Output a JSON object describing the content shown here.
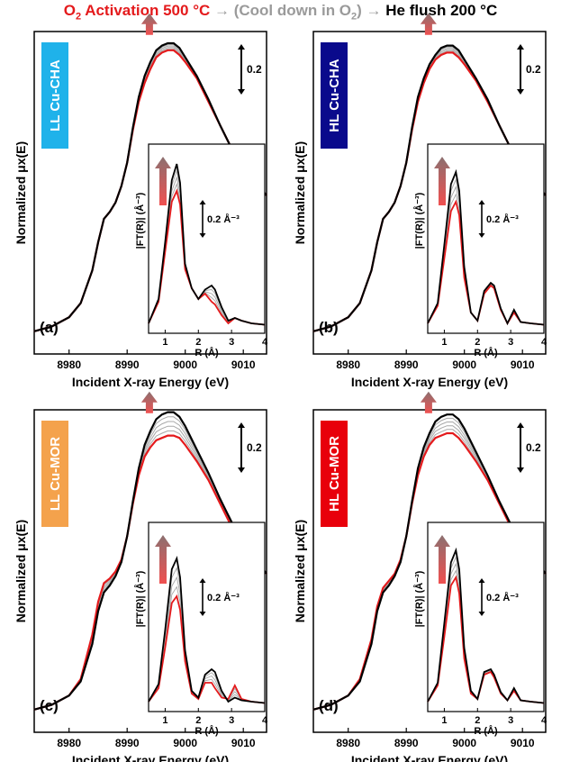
{
  "title": {
    "part1": "O",
    "part1_sub": "2",
    "part1_rest": " Activation 500 °C",
    "arrow1": " → ",
    "part2": "(Cool down in O",
    "part2_sub": "2",
    "part2_rest": ")",
    "arrow2": " → ",
    "part3": "He flush 200 °C"
  },
  "colors": {
    "activation": "#e41a1c",
    "cooling": "#a8a8a8",
    "flush": "#000000",
    "arrow_top": "#8c7070",
    "arrow_bottom": "#f05050"
  },
  "chart_data": [
    {
      "type": "line",
      "panel_label": "(a)",
      "sample_label": "LL Cu-CHA",
      "sample_color": "#1fb2ea",
      "xlabel": "Incident X-ray Energy (eV)",
      "ylabel": "Normalized μx(E)",
      "xlim": [
        8974,
        9014
      ],
      "xticks": [
        "8980",
        "8990",
        "9000",
        "9010"
      ],
      "scale_bar": "0.2",
      "main_series": [
        {
          "name": "O2 Activation 500 °C",
          "x": [
            8974,
            8977,
            8980,
            8982,
            8984,
            8985,
            8986,
            8987,
            8988,
            8989,
            8990,
            8991,
            8992,
            8993,
            8994,
            8995,
            8996,
            8997,
            8998,
            8999,
            9000,
            9002,
            9004,
            9006,
            9008,
            9010,
            9014
          ],
          "y": [
            0.02,
            0.04,
            0.08,
            0.14,
            0.28,
            0.4,
            0.5,
            0.53,
            0.57,
            0.64,
            0.74,
            0.88,
            1.0,
            1.08,
            1.14,
            1.19,
            1.21,
            1.22,
            1.22,
            1.2,
            1.17,
            1.1,
            1.0,
            0.9,
            0.8,
            0.72,
            0.6
          ]
        },
        {
          "name": "He flush 200 °C",
          "x": [
            8974,
            8977,
            8980,
            8982,
            8984,
            8985,
            8986,
            8987,
            8988,
            8989,
            8990,
            8991,
            8992,
            8993,
            8994,
            8995,
            8996,
            8997,
            8998,
            8999,
            9000,
            9002,
            9004,
            9006,
            9008,
            9010,
            9014
          ],
          "y": [
            0.02,
            0.04,
            0.08,
            0.14,
            0.28,
            0.4,
            0.5,
            0.53,
            0.57,
            0.64,
            0.74,
            0.89,
            1.02,
            1.11,
            1.17,
            1.22,
            1.24,
            1.25,
            1.25,
            1.23,
            1.19,
            1.11,
            1.01,
            0.9,
            0.8,
            0.72,
            0.6
          ]
        }
      ],
      "inset": {
        "xlabel": "R (Å)",
        "ylabel": "|FT(R)| (Å⁻³)",
        "xlim": [
          0.5,
          4
        ],
        "xticks": [
          "1",
          "2",
          "3",
          "4"
        ],
        "scale_bar": "0.2 Å⁻³",
        "series": [
          {
            "name": "O2 Activation 500 °C",
            "x": [
              0.5,
              0.8,
              1.0,
              1.2,
              1.35,
              1.45,
              1.6,
              1.8,
              2.0,
              2.2,
              2.4,
              2.5,
              2.7,
              2.9,
              3.1,
              3.3,
              3.6,
              4.0
            ],
            "y": [
              0.02,
              0.18,
              0.55,
              0.92,
              1.0,
              0.9,
              0.42,
              0.28,
              0.2,
              0.24,
              0.18,
              0.16,
              0.08,
              0.02,
              0.06,
              0.04,
              0.02,
              0.01
            ]
          },
          {
            "name": "He flush 200 °C",
            "x": [
              0.5,
              0.8,
              1.0,
              1.2,
              1.35,
              1.45,
              1.6,
              1.8,
              2.0,
              2.2,
              2.4,
              2.5,
              2.7,
              2.9,
              3.1,
              3.3,
              3.6,
              4.0
            ],
            "y": [
              0.02,
              0.2,
              0.62,
              1.08,
              1.2,
              1.06,
              0.46,
              0.28,
              0.2,
              0.27,
              0.3,
              0.27,
              0.14,
              0.04,
              0.06,
              0.04,
              0.02,
              0.01
            ]
          }
        ]
      }
    },
    {
      "type": "line",
      "panel_label": "(b)",
      "sample_label": "HL Cu-CHA",
      "sample_color": "#0a0a8c",
      "xlabel": "Incident X-ray Energy (eV)",
      "ylabel": "Normalized μx(E)",
      "xlim": [
        8974,
        9014
      ],
      "xticks": [
        "8980",
        "8990",
        "9000",
        "9010"
      ],
      "scale_bar": "0.2",
      "main_series": [
        {
          "name": "O2 Activation 500 °C",
          "x": [
            8974,
            8977,
            8980,
            8982,
            8984,
            8985,
            8986,
            8987,
            8988,
            8989,
            8990,
            8991,
            8992,
            8993,
            8994,
            8995,
            8996,
            8997,
            8998,
            8999,
            9000,
            9002,
            9004,
            9006,
            9008,
            9010,
            9014
          ],
          "y": [
            0.02,
            0.04,
            0.08,
            0.14,
            0.28,
            0.4,
            0.5,
            0.53,
            0.57,
            0.64,
            0.74,
            0.88,
            1.0,
            1.08,
            1.14,
            1.18,
            1.2,
            1.21,
            1.21,
            1.19,
            1.16,
            1.09,
            1.0,
            0.9,
            0.8,
            0.72,
            0.6
          ]
        },
        {
          "name": "He flush 200 °C",
          "x": [
            8974,
            8977,
            8980,
            8982,
            8984,
            8985,
            8986,
            8987,
            8988,
            8989,
            8990,
            8991,
            8992,
            8993,
            8994,
            8995,
            8996,
            8997,
            8998,
            8999,
            9000,
            9002,
            9004,
            9006,
            9008,
            9010,
            9014
          ],
          "y": [
            0.02,
            0.04,
            0.08,
            0.14,
            0.28,
            0.4,
            0.5,
            0.53,
            0.57,
            0.64,
            0.74,
            0.89,
            1.02,
            1.1,
            1.16,
            1.2,
            1.23,
            1.24,
            1.24,
            1.22,
            1.18,
            1.1,
            1.01,
            0.9,
            0.8,
            0.72,
            0.6
          ]
        }
      ],
      "inset": {
        "xlabel": "R (Å)",
        "ylabel": "|FT(R)| (Å⁻³)",
        "xlim": [
          0.5,
          4
        ],
        "xticks": [
          "1",
          "2",
          "3",
          "4"
        ],
        "scale_bar": "0.2 Å⁻³",
        "series": [
          {
            "name": "O2 Activation 500 °C",
            "x": [
              0.5,
              0.8,
              1.0,
              1.2,
              1.35,
              1.45,
              1.6,
              1.8,
              2.0,
              2.2,
              2.4,
              2.5,
              2.7,
              2.9,
              3.1,
              3.3,
              3.6,
              4.0
            ],
            "y": [
              0.02,
              0.15,
              0.5,
              0.85,
              0.92,
              0.82,
              0.36,
              0.1,
              0.04,
              0.24,
              0.3,
              0.28,
              0.12,
              0.02,
              0.1,
              0.03,
              0.02,
              0.01
            ]
          },
          {
            "name": "He flush 200 °C",
            "x": [
              0.5,
              0.8,
              1.0,
              1.2,
              1.35,
              1.45,
              1.6,
              1.8,
              2.0,
              2.2,
              2.4,
              2.5,
              2.7,
              2.9,
              3.1,
              3.3,
              3.6,
              4.0
            ],
            "y": [
              0.02,
              0.17,
              0.6,
              1.05,
              1.14,
              1.0,
              0.44,
              0.1,
              0.04,
              0.26,
              0.32,
              0.3,
              0.13,
              0.02,
              0.12,
              0.03,
              0.02,
              0.01
            ]
          }
        ]
      }
    },
    {
      "type": "line",
      "panel_label": "(c)",
      "sample_label": "LL Cu-MOR",
      "sample_color": "#f4a24c",
      "xlabel": "Incident X-ray Energy (eV)",
      "ylabel": "Normalized μx(E)",
      "xlim": [
        8974,
        9014
      ],
      "xticks": [
        "8980",
        "8990",
        "9000",
        "9010"
      ],
      "scale_bar": "0.2",
      "main_series": [
        {
          "name": "O2 Activation 500 °C",
          "x": [
            8974,
            8977,
            8980,
            8982,
            8984,
            8985,
            8986,
            8987,
            8988,
            8989,
            8990,
            8991,
            8992,
            8993,
            8994,
            8995,
            8996,
            8997,
            8998,
            8999,
            9000,
            9002,
            9004,
            9006,
            9008,
            9010,
            9014
          ],
          "y": [
            0.02,
            0.04,
            0.08,
            0.15,
            0.34,
            0.48,
            0.56,
            0.58,
            0.61,
            0.66,
            0.76,
            0.9,
            1.02,
            1.1,
            1.14,
            1.17,
            1.18,
            1.19,
            1.19,
            1.18,
            1.15,
            1.08,
            1.0,
            0.9,
            0.8,
            0.72,
            0.6
          ]
        },
        {
          "name": "He flush 200 °C",
          "x": [
            8974,
            8977,
            8980,
            8982,
            8984,
            8985,
            8986,
            8987,
            8988,
            8989,
            8990,
            8991,
            8992,
            8993,
            8994,
            8995,
            8996,
            8997,
            8998,
            8999,
            9000,
            9002,
            9004,
            9006,
            9008,
            9010,
            9014
          ],
          "y": [
            0.02,
            0.04,
            0.08,
            0.14,
            0.3,
            0.44,
            0.52,
            0.55,
            0.59,
            0.65,
            0.76,
            0.91,
            1.05,
            1.15,
            1.21,
            1.26,
            1.28,
            1.29,
            1.29,
            1.27,
            1.23,
            1.13,
            1.03,
            0.92,
            0.82,
            0.73,
            0.6
          ]
        }
      ],
      "inset": {
        "xlabel": "R (Å)",
        "ylabel": "|FT(R)| (Å⁻³)",
        "xlim": [
          0.5,
          4
        ],
        "xticks": [
          "1",
          "2",
          "3",
          "4"
        ],
        "scale_bar": "0.2 Å⁻³",
        "series": [
          {
            "name": "O2 Activation 500 °C",
            "x": [
              0.5,
              0.8,
              1.0,
              1.2,
              1.35,
              1.45,
              1.6,
              1.8,
              2.0,
              2.2,
              2.4,
              2.5,
              2.7,
              2.9,
              3.1,
              3.3,
              3.6,
              4.0
            ],
            "y": [
              0.02,
              0.12,
              0.42,
              0.75,
              0.8,
              0.7,
              0.32,
              0.08,
              0.04,
              0.16,
              0.16,
              0.12,
              0.05,
              0.04,
              0.14,
              0.04,
              0.02,
              0.01
            ]
          },
          {
            "name": "He flush 200 °C",
            "x": [
              0.5,
              0.8,
              1.0,
              1.2,
              1.35,
              1.45,
              1.6,
              1.8,
              2.0,
              2.2,
              2.4,
              2.5,
              2.7,
              2.9,
              3.1,
              3.3,
              3.6,
              4.0
            ],
            "y": [
              0.02,
              0.15,
              0.55,
              1.0,
              1.08,
              0.94,
              0.4,
              0.1,
              0.05,
              0.22,
              0.26,
              0.24,
              0.1,
              0.02,
              0.05,
              0.03,
              0.02,
              0.01
            ]
          }
        ]
      }
    },
    {
      "type": "line",
      "panel_label": "(d)",
      "sample_label": "HL Cu-MOR",
      "sample_color": "#e8000b",
      "xlabel": "Incident X-ray Energy (eV)",
      "ylabel": "Normalized μx(E)",
      "xlim": [
        8974,
        9014
      ],
      "xticks": [
        "8980",
        "8990",
        "9000",
        "9010"
      ],
      "scale_bar": "0.2",
      "main_series": [
        {
          "name": "O2 Activation 500 °C",
          "x": [
            8974,
            8977,
            8980,
            8982,
            8984,
            8985,
            8986,
            8987,
            8988,
            8989,
            8990,
            8991,
            8992,
            8993,
            8994,
            8995,
            8996,
            8997,
            8998,
            8999,
            9000,
            9002,
            9004,
            9006,
            9008,
            9010,
            9014
          ],
          "y": [
            0.02,
            0.04,
            0.08,
            0.15,
            0.32,
            0.46,
            0.54,
            0.57,
            0.6,
            0.66,
            0.76,
            0.9,
            1.02,
            1.1,
            1.15,
            1.18,
            1.19,
            1.2,
            1.2,
            1.18,
            1.15,
            1.08,
            1.0,
            0.9,
            0.8,
            0.72,
            0.6
          ]
        },
        {
          "name": "He flush 200 °C",
          "x": [
            8974,
            8977,
            8980,
            8982,
            8984,
            8985,
            8986,
            8987,
            8988,
            8989,
            8990,
            8991,
            8992,
            8993,
            8994,
            8995,
            8996,
            8997,
            8998,
            8999,
            9000,
            9002,
            9004,
            9006,
            9008,
            9010,
            9014
          ],
          "y": [
            0.02,
            0.04,
            0.08,
            0.14,
            0.3,
            0.44,
            0.52,
            0.55,
            0.59,
            0.65,
            0.76,
            0.91,
            1.05,
            1.14,
            1.2,
            1.25,
            1.27,
            1.28,
            1.28,
            1.26,
            1.22,
            1.12,
            1.02,
            0.91,
            0.81,
            0.73,
            0.6
          ]
        }
      ],
      "inset": {
        "xlabel": "R (Å)",
        "ylabel": "|FT(R)| (Å⁻³)",
        "xlim": [
          0.5,
          4
        ],
        "xticks": [
          "1",
          "2",
          "3",
          "4"
        ],
        "scale_bar": "0.2 Å⁻³",
        "series": [
          {
            "name": "O2 Activation 500 °C",
            "x": [
              0.5,
              0.8,
              1.0,
              1.2,
              1.35,
              1.45,
              1.6,
              1.8,
              2.0,
              2.2,
              2.4,
              2.5,
              2.7,
              2.9,
              3.1,
              3.3,
              3.6,
              4.0
            ],
            "y": [
              0.02,
              0.14,
              0.5,
              0.88,
              0.94,
              0.82,
              0.34,
              0.08,
              0.04,
              0.22,
              0.24,
              0.2,
              0.08,
              0.03,
              0.1,
              0.03,
              0.02,
              0.01
            ]
          },
          {
            "name": "He flush 200 °C",
            "x": [
              0.5,
              0.8,
              1.0,
              1.2,
              1.35,
              1.45,
              1.6,
              1.8,
              2.0,
              2.2,
              2.4,
              2.5,
              2.7,
              2.9,
              3.1,
              3.3,
              3.6,
              4.0
            ],
            "y": [
              0.02,
              0.16,
              0.6,
              1.05,
              1.14,
              1.0,
              0.42,
              0.1,
              0.04,
              0.24,
              0.26,
              0.22,
              0.09,
              0.03,
              0.12,
              0.03,
              0.02,
              0.01
            ]
          }
        ]
      }
    }
  ]
}
